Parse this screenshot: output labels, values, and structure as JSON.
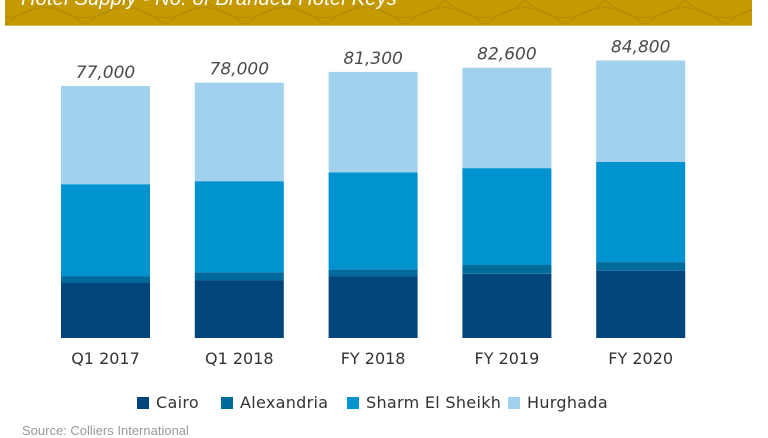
{
  "header": {
    "title": "Hotel Supply - No. of Branded Hotel Keys",
    "background_color": "#C49A00"
  },
  "chart_data": {
    "type": "bar",
    "stacked": true,
    "title": "Hotel Supply - No. of Branded Hotel Keys",
    "xlabel": "",
    "ylabel": "",
    "ylim": [
      0,
      90000
    ],
    "grid": false,
    "legend_position": "bottom",
    "categories": [
      "Q1 2017",
      "Q1 2018",
      "FY 2018",
      "FY 2019",
      "FY 2020"
    ],
    "totals": [
      77000,
      78000,
      81300,
      82600,
      84800
    ],
    "total_labels": [
      "77,000",
      "78,000",
      "81,300",
      "82,600",
      "84,800"
    ],
    "series": [
      {
        "name": "Cairo",
        "color": "#00457C",
        "values": [
          16800,
          17700,
          18900,
          19600,
          20500
        ]
      },
      {
        "name": "Alexandria",
        "color": "#006B9A",
        "values": [
          2100,
          2400,
          2100,
          2700,
          2700
        ]
      },
      {
        "name": "Sharm El Sheikh",
        "color": "#0093D0",
        "values": [
          28100,
          27800,
          29600,
          29600,
          30600
        ]
      },
      {
        "name": "Hurghada",
        "color": "#A2D1EE",
        "values": [
          30000,
          30100,
          30700,
          30700,
          31000
        ]
      }
    ]
  },
  "footer": {
    "source": "Source: Colliers International"
  }
}
